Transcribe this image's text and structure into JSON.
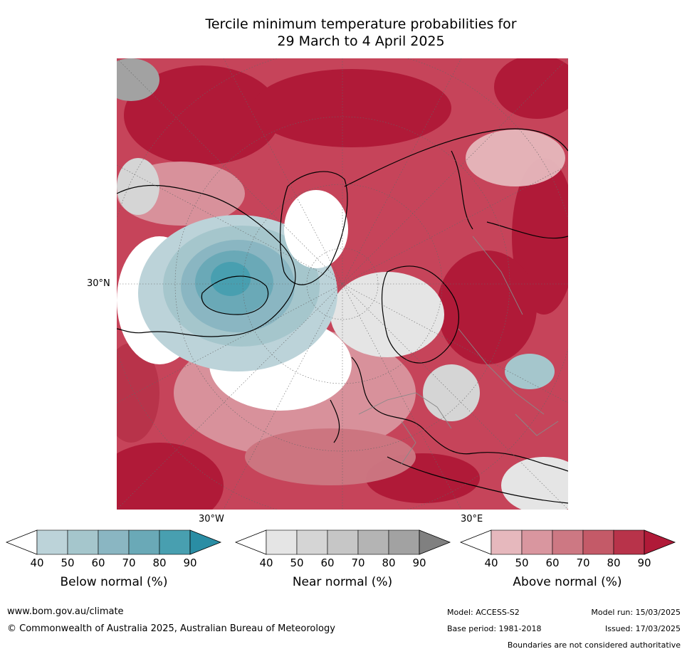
{
  "title_line1": "Tercile minimum temperature probabilities for",
  "title_line2": "29 March to 4 April 2025",
  "map": {
    "projection": "north-polar-stereographic",
    "gridlines": "dotted grey",
    "labels": {
      "lat_30n": "30°N",
      "lon_30w": "30°W",
      "lon_30e": "30°E"
    }
  },
  "legends": [
    {
      "label": "Below normal (%)",
      "ticks": [
        "40",
        "50",
        "60",
        "70",
        "80",
        "90"
      ],
      "colors": [
        "#ffffff",
        "#bcd3d9",
        "#a5c6cc",
        "#8ab6c2",
        "#6aa9b7",
        "#489fb0",
        "#2a8da4"
      ]
    },
    {
      "label": "Near normal (%)",
      "ticks": [
        "40",
        "50",
        "60",
        "70",
        "80",
        "90"
      ],
      "colors": [
        "#ffffff",
        "#e5e5e5",
        "#d5d5d5",
        "#c6c6c6",
        "#b4b4b4",
        "#a2a2a2",
        "#808080"
      ]
    },
    {
      "label": "Above normal (%)",
      "ticks": [
        "40",
        "50",
        "60",
        "70",
        "80",
        "90"
      ],
      "colors": [
        "#ffffff",
        "#e6b8bd",
        "#d9969f",
        "#cd7883",
        "#c45a68",
        "#b8334a",
        "#b01a38"
      ]
    }
  ],
  "footer": {
    "website": "www.bom.gov.au/climate",
    "copyright": "© Commonwealth of Australia 2025, Australian Bureau of Meteorology",
    "model": "Model: ACCESS-S2",
    "model_run": "Model run: 15/03/2025",
    "base_period": "Base period: 1981-2018",
    "issued": "Issued: 17/03/2025",
    "disclaimer": "Boundaries are not considered authoritative"
  }
}
